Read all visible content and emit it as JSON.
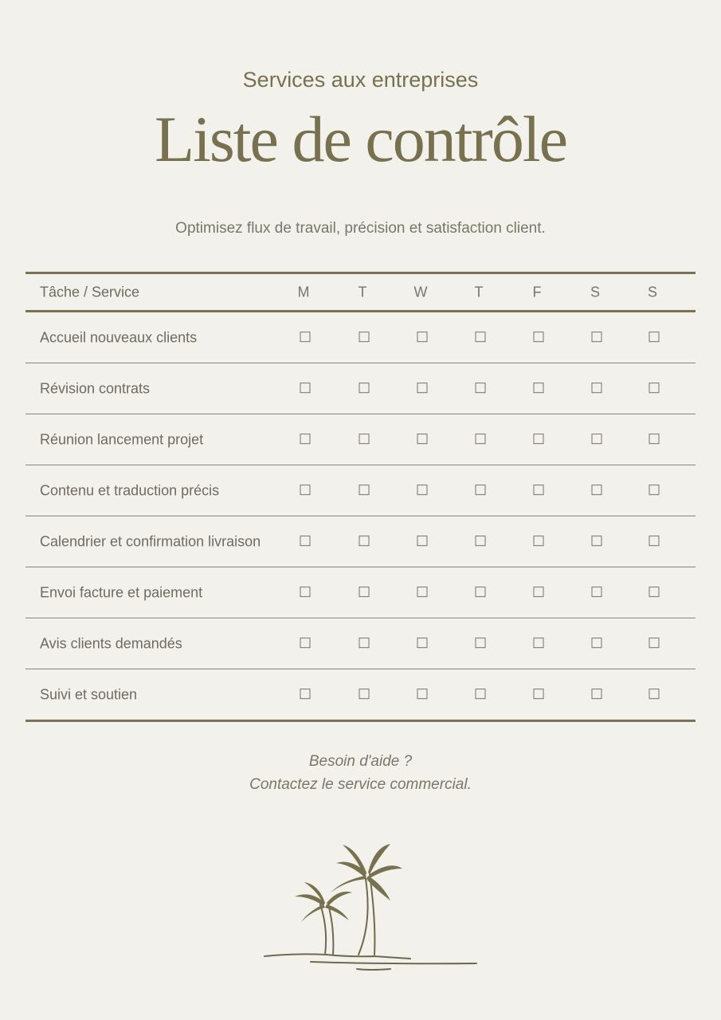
{
  "header": {
    "title": "Liste de contrôle",
    "subtitle": "Services aux entreprises",
    "tagline": "Optimisez flux de travail, précision et satisfaction client."
  },
  "table": {
    "task_header": "Tâche / Service",
    "days": [
      "M",
      "T",
      "W",
      "T",
      "F",
      "S",
      "S"
    ],
    "rows": [
      {
        "label": "Accueil nouveaux clients",
        "checked": [
          false,
          false,
          false,
          false,
          false,
          false,
          false
        ]
      },
      {
        "label": "Révision contrats",
        "checked": [
          false,
          false,
          false,
          false,
          false,
          false,
          false
        ]
      },
      {
        "label": "Réunion lancement projet",
        "checked": [
          false,
          false,
          false,
          false,
          false,
          false,
          false
        ]
      },
      {
        "label": "Contenu et traduction précis",
        "checked": [
          false,
          false,
          false,
          false,
          false,
          false,
          false
        ]
      },
      {
        "label": "Calendrier et confirmation livraison",
        "checked": [
          false,
          false,
          false,
          false,
          false,
          false,
          false
        ]
      },
      {
        "label": "Envoi facture et paiement",
        "checked": [
          false,
          false,
          false,
          false,
          false,
          false,
          false
        ]
      },
      {
        "label": "Avis clients demandés",
        "checked": [
          false,
          false,
          false,
          false,
          false,
          false,
          false
        ]
      },
      {
        "label": "Suivi et soutien",
        "checked": [
          false,
          false,
          false,
          false,
          false,
          false,
          false
        ]
      }
    ]
  },
  "footer": {
    "line1": "Besoin d'aide ?",
    "line2": "Contactez le service commercial."
  },
  "colors": {
    "accent": "#77714f",
    "background": "#f3f1ec"
  },
  "illustration": "palm-trees-icon"
}
